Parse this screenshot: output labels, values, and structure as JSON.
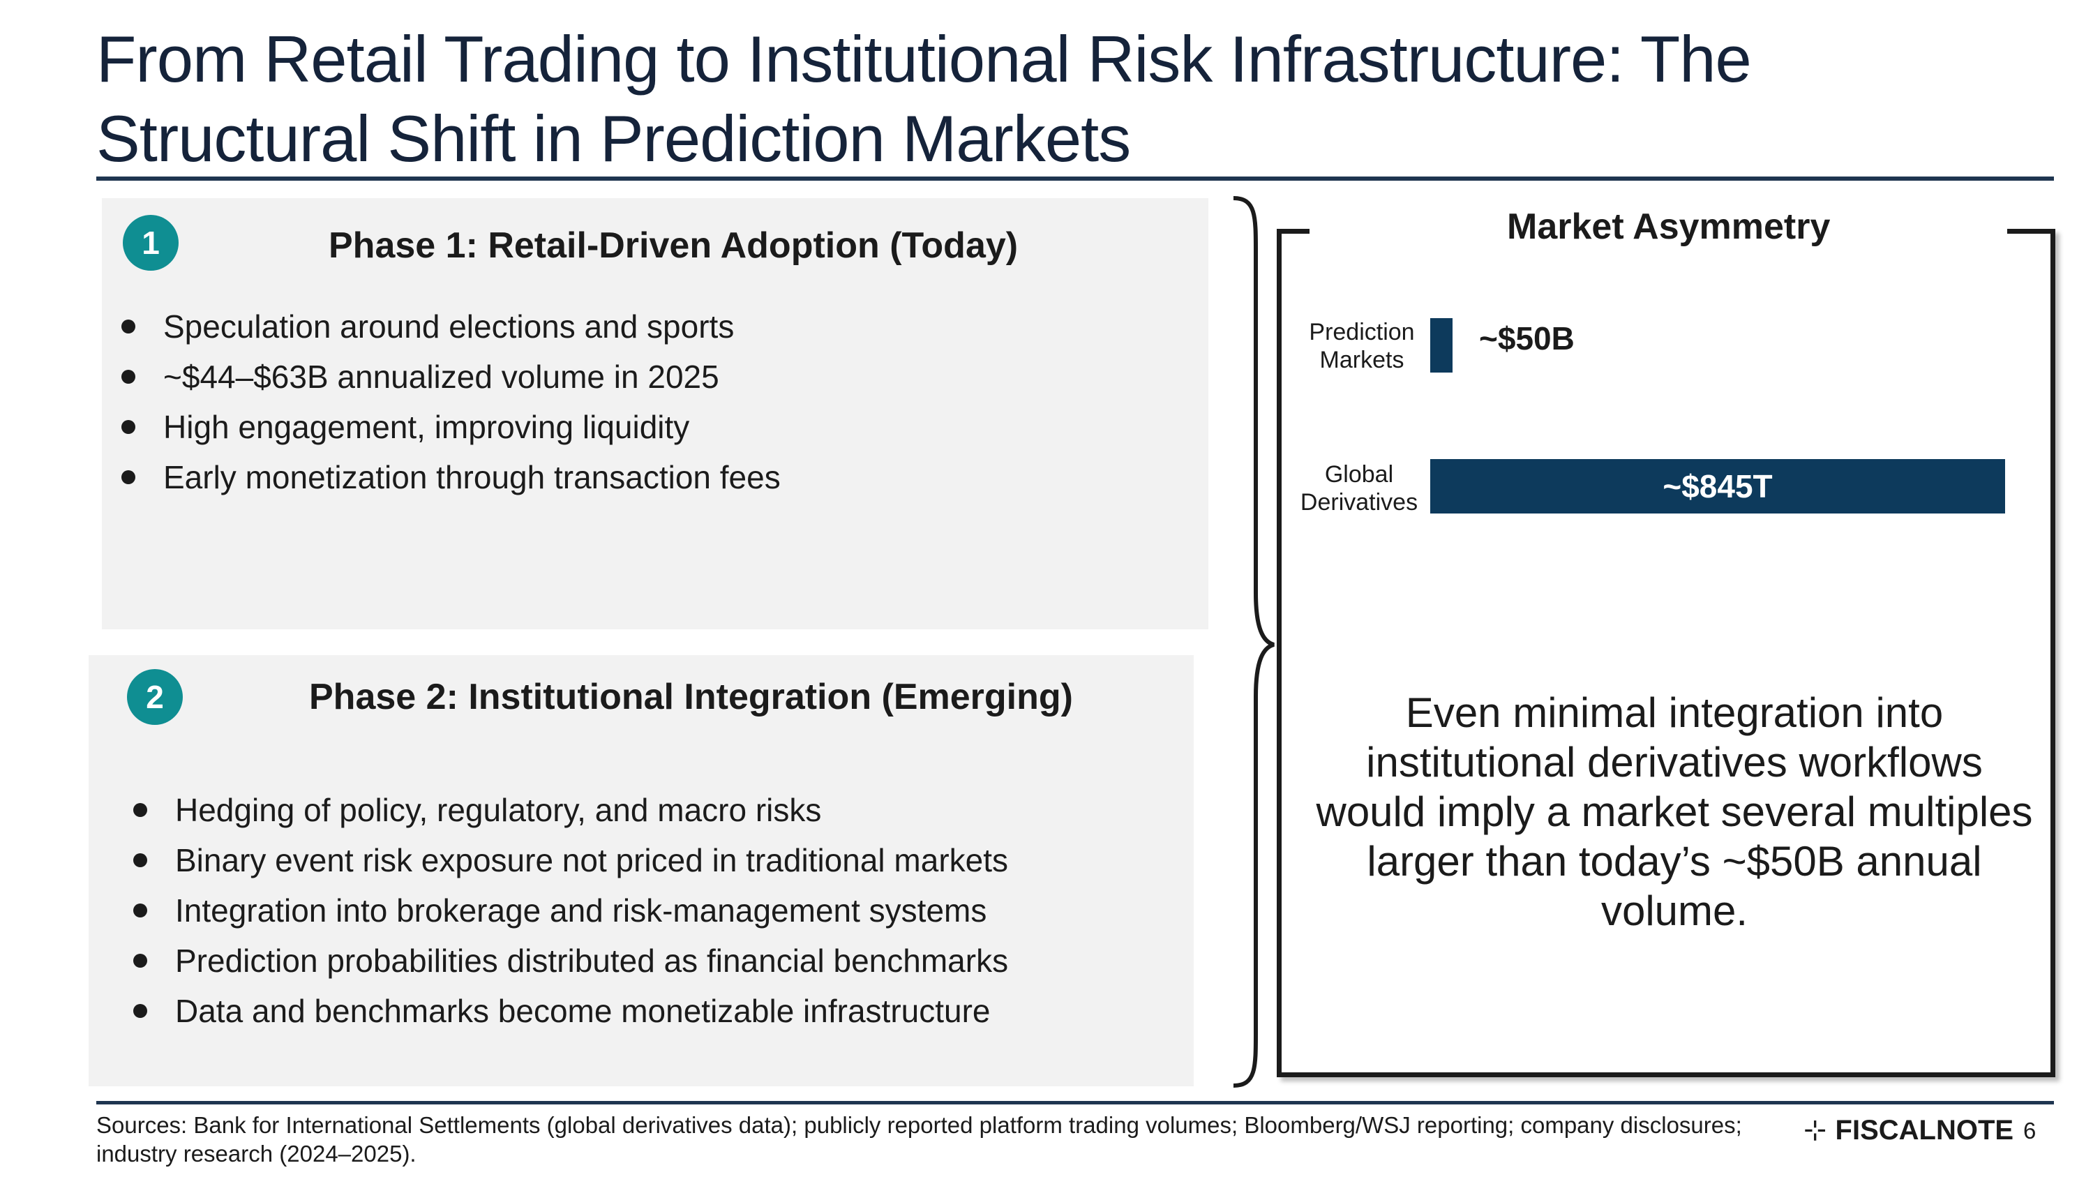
{
  "slide": {
    "title": "From Retail Trading to Institutional Risk Infrastructure: The Structural Shift in Prediction Markets",
    "page_number": "6"
  },
  "phase1": {
    "badge": "1",
    "title": "Phase 1: Retail-Driven Adoption (Today)",
    "bullets": [
      "Speculation around elections and sports",
      "~$44–$63B annualized volume in 2025",
      "High engagement, improving liquidity",
      "Early monetization through transaction fees"
    ]
  },
  "phase2": {
    "badge": "2",
    "title": "Phase 2: Institutional Integration (Emerging)",
    "bullets": [
      "Hedging of policy, regulatory, and macro risks",
      "Binary event risk exposure not priced in traditional markets",
      "Integration into brokerage and risk-management systems",
      "Prediction probabilities distributed as financial benchmarks",
      "Data and benchmarks become monetizable infrastructure"
    ]
  },
  "asymmetry": {
    "title": "Market Asymmetry",
    "bar_color": "#0d3a5c",
    "bars": [
      {
        "label_line1": "Prediction",
        "label_line2": "Markets",
        "value_label": "~$50B"
      },
      {
        "label_line1": "Global",
        "label_line2": "Derivatives",
        "value_label": "~$845T"
      }
    ],
    "statement": "Even minimal integration into institutional derivatives workflows would imply a market several multiples larger than today’s ~$50B annual volume."
  },
  "footer": {
    "sources": "Sources: Bank for International Settlements (global derivatives data); publicly reported platform trading volumes; Bloomberg/WSJ reporting; company disclosures; industry research (2024–2025).",
    "logo_mark": "⊹",
    "logo_text": "FISCALNOTE"
  },
  "colors": {
    "accent_teal": "#0f8e92",
    "navy": "#0d3a5c",
    "panel_bg": "#f2f2f2",
    "rule": "#1f3550"
  }
}
